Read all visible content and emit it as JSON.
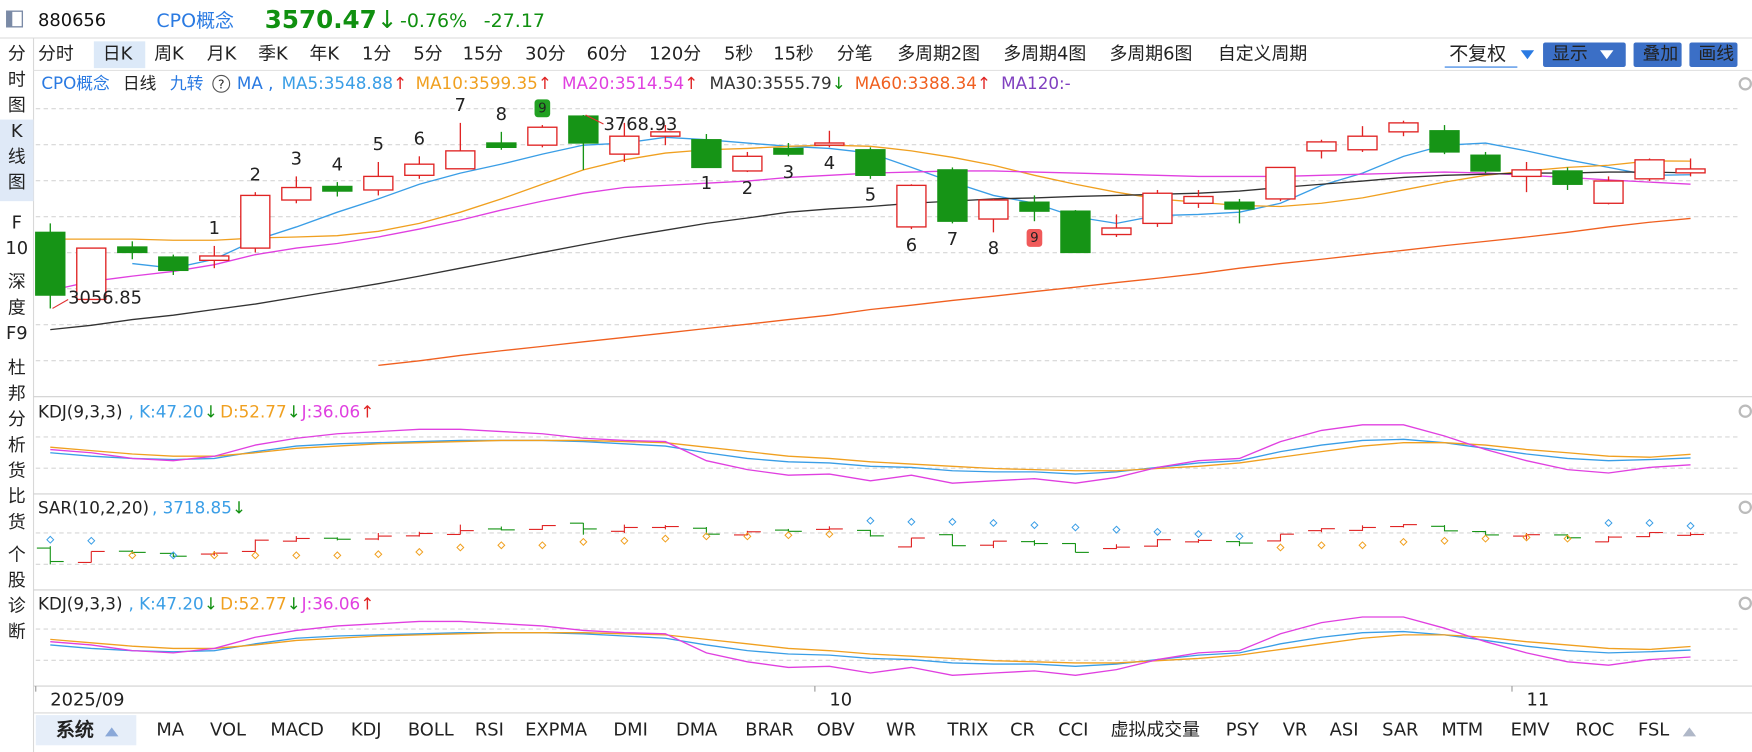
{
  "header": {
    "code": "880656",
    "name": "CPO概念",
    "price": "3570.47",
    "arrow": "↓",
    "change_pct": "-0.76%",
    "change": "-27.17"
  },
  "sidebar": [
    [
      "分",
      "时",
      "图"
    ],
    [
      "K",
      "线",
      "图"
    ],
    [
      "F",
      "10"
    ],
    [
      "深",
      "度",
      "F9"
    ],
    [
      "杜",
      "邦",
      "分",
      "析"
    ],
    [
      "货",
      "比",
      "货"
    ],
    [
      "个",
      "股",
      "诊",
      "断"
    ]
  ],
  "active_sidebar": 1,
  "periods": [
    "分时",
    "日K",
    "周K",
    "月K",
    "季K",
    "年K",
    "1分",
    "5分",
    "15分",
    "30分",
    "60分",
    "120分",
    "5秒",
    "15秒",
    "分笔",
    "多周期2图",
    "多周期4图",
    "多周期6图",
    "自定义周期"
  ],
  "active_period": 1,
  "toolbar": {
    "adjust": "不复权",
    "buttons": [
      "显示",
      "叠加",
      "画线"
    ]
  },
  "chart_data": [
    {
      "type": "candlestick",
      "title": "CPO概念",
      "subtitle": "日线",
      "indicator": "九转",
      "ma_label": "MA ,",
      "categories": [
        "2025/09",
        null,
        null,
        null,
        null,
        null,
        null,
        null,
        null,
        null,
        null,
        null,
        null,
        null,
        null,
        null,
        null,
        null,
        null,
        "10",
        null,
        null,
        null,
        null,
        null,
        null,
        null,
        null,
        null,
        null,
        null,
        null,
        null,
        null,
        null,
        null,
        "11",
        null,
        null,
        null,
        null
      ],
      "open": [
        3337,
        3090,
        3283,
        3246,
        3234,
        3279,
        3456,
        3506,
        3493,
        3547,
        3571,
        3666,
        3658,
        3765,
        3625,
        3691,
        3678,
        3563,
        3646,
        3658,
        3641,
        3357,
        3567,
        3386,
        3448,
        3415,
        3329,
        3370,
        3444,
        3448,
        3460,
        3637,
        3641,
        3707,
        3711,
        3621,
        3543,
        3563,
        3444,
        3534,
        3556
      ],
      "high": [
        3370,
        3279,
        3304,
        3255,
        3287,
        3485,
        3543,
        3522,
        3596,
        3617,
        3740,
        3707,
        3732,
        3768.93,
        3740,
        3732,
        3699,
        3633,
        3666,
        3711,
        3650,
        3514,
        3576,
        3460,
        3473,
        3419,
        3403,
        3493,
        3493,
        3460,
        3576,
        3678,
        3728,
        3748,
        3732,
        3633,
        3596,
        3576,
        3543,
        3609,
        3609
      ],
      "low": [
        3056.85,
        3090,
        3238,
        3180,
        3205,
        3263,
        3444,
        3469,
        3473,
        3534,
        3571,
        3641,
        3650,
        3567,
        3596,
        3658,
        3576,
        3559,
        3617,
        3650,
        3534,
        3349,
        3370,
        3337,
        3378,
        3263,
        3320,
        3357,
        3427,
        3370,
        3452,
        3609,
        3633,
        3691,
        3625,
        3555,
        3485,
        3493,
        3440,
        3526,
        3543
      ],
      "close": [
        3106,
        3279,
        3263,
        3197,
        3250,
        3473,
        3502,
        3489,
        3543,
        3588,
        3637,
        3650,
        3724,
        3666,
        3691,
        3707,
        3576,
        3617,
        3625,
        3666,
        3547,
        3510,
        3378,
        3456,
        3415,
        3263,
        3353,
        3481,
        3469,
        3423,
        3576,
        3670,
        3691,
        3740,
        3633,
        3563,
        3567,
        3514,
        3526,
        3604,
        3570.47
      ],
      "up_color": "#e02424",
      "down_color": "#169416",
      "ylim": [
        2732,
        3925
      ],
      "high_label": {
        "index": 13,
        "text": "3768.93"
      },
      "low_label": {
        "index": 0,
        "text": "3056.85"
      },
      "td_up": [
        {
          "index": 4,
          "text": "1"
        },
        {
          "index": 5,
          "text": "2"
        },
        {
          "index": 6,
          "text": "3"
        },
        {
          "index": 7,
          "text": "4"
        },
        {
          "index": 8,
          "text": "5"
        },
        {
          "index": 9,
          "text": "6"
        },
        {
          "index": 10,
          "text": "7"
        },
        {
          "index": 11,
          "text": "8"
        },
        {
          "index": 12,
          "text": "9"
        }
      ],
      "td_down": [
        {
          "index": 16,
          "text": "1"
        },
        {
          "index": 17,
          "text": "2"
        },
        {
          "index": 18,
          "text": "3"
        },
        {
          "index": 19,
          "text": "4"
        },
        {
          "index": 20,
          "text": "5"
        },
        {
          "index": 21,
          "text": "6"
        },
        {
          "index": 22,
          "text": "7"
        },
        {
          "index": 23,
          "text": "8"
        },
        {
          "index": 24,
          "text": "9"
        }
      ],
      "td_color": "#e020c8",
      "series": [
        {
          "name": "MA5:3548.88",
          "arrow": "↑",
          "color": "#3a9ee6",
          "values": [
            null,
            null,
            3222,
            3205,
            3238,
            3308,
            3357,
            3411,
            3460,
            3514,
            3555,
            3588,
            3625,
            3658,
            3666,
            3687,
            3678,
            3666,
            3654,
            3646,
            3629,
            3576,
            3522,
            3473,
            3444,
            3394,
            3370,
            3399,
            3403,
            3411,
            3444,
            3510,
            3555,
            3617,
            3658,
            3666,
            3637,
            3604,
            3576,
            3547,
            3548.88
          ]
        },
        {
          "name": "MA10:3599.35",
          "arrow": "↑",
          "color": "#f0a020",
          "values": [
            3312,
            3312,
            3312,
            3308,
            3308,
            3316,
            3320,
            3325,
            3341,
            3370,
            3411,
            3460,
            3514,
            3567,
            3604,
            3629,
            3641,
            3646,
            3654,
            3658,
            3654,
            3637,
            3613,
            3584,
            3547,
            3514,
            3485,
            3460,
            3448,
            3436,
            3432,
            3444,
            3464,
            3493,
            3522,
            3547,
            3563,
            3576,
            3584,
            3600,
            3599.35
          ]
        },
        {
          "name": "MA20:3514.54",
          "arrow": "↑",
          "color": "#e040e0",
          "values": [
            3123,
            3156,
            3176,
            3193,
            3218,
            3255,
            3279,
            3296,
            3320,
            3349,
            3382,
            3419,
            3452,
            3481,
            3502,
            3510,
            3518,
            3526,
            3539,
            3547,
            3555,
            3559,
            3563,
            3563,
            3559,
            3555,
            3551,
            3547,
            3543,
            3543,
            3543,
            3547,
            3551,
            3555,
            3559,
            3555,
            3547,
            3539,
            3530,
            3522,
            3514.54
          ]
        },
        {
          "name": "MA30:3555.79",
          "arrow": "↓",
          "color": "#333333",
          "values": [
            2979,
            2995,
            3016,
            3032,
            3053,
            3073,
            3098,
            3123,
            3148,
            3176,
            3205,
            3234,
            3263,
            3292,
            3320,
            3345,
            3370,
            3390,
            3411,
            3423,
            3432,
            3444,
            3452,
            3460,
            3464,
            3469,
            3473,
            3477,
            3481,
            3489,
            3502,
            3514,
            3526,
            3539,
            3547,
            3551,
            3555,
            3555,
            3559,
            3559,
            3555.79
          ]
        },
        {
          "name": "MA60:3388.34",
          "arrow": "↑",
          "color": "#f06020",
          "values": [
            null,
            null,
            null,
            null,
            null,
            null,
            null,
            null,
            2847,
            2864,
            2884,
            2901,
            2917,
            2934,
            2950,
            2966,
            2983,
            2999,
            3016,
            3032,
            3053,
            3069,
            3086,
            3102,
            3119,
            3135,
            3152,
            3168,
            3185,
            3205,
            3222,
            3238,
            3255,
            3271,
            3288,
            3304,
            3320,
            3337,
            3357,
            3374,
            3388.34
          ]
        },
        {
          "name": "MA120:-",
          "color": "#8040c0"
        }
      ]
    },
    {
      "type": "line",
      "title": "KDJ(9,3,3)",
      "ylim": [
        -10,
        139
      ],
      "series": [
        {
          "name": ", K:47.20",
          "arrow": "↓",
          "color": "#3a9ee6",
          "values": [
            55.2,
            49.8,
            46.3,
            44.5,
            46.3,
            57,
            65.9,
            69.4,
            71.2,
            73,
            74.8,
            74.8,
            74.8,
            73,
            69.4,
            65.9,
            55.2,
            46.3,
            40.9,
            39.2,
            33.8,
            32,
            26.7,
            24.9,
            24.9,
            21.4,
            24.9,
            32,
            39.2,
            42.7,
            57,
            67.6,
            74.8,
            76.5,
            71.2,
            62.3,
            53.4,
            46.3,
            42.7,
            44.5,
            47.2
          ]
        },
        {
          "name": "D:52.77",
          "arrow": "↓",
          "color": "#f0a020",
          "values": [
            64.1,
            58.7,
            53.4,
            49.8,
            49.8,
            55.2,
            62.3,
            65.9,
            69.4,
            71.2,
            73,
            74.8,
            74.8,
            74.8,
            73,
            71.2,
            64.1,
            57,
            49.8,
            46.3,
            40.9,
            37.4,
            33.8,
            30.3,
            28.5,
            26.7,
            26.7,
            30.3,
            33.8,
            39.2,
            48.1,
            57,
            65.9,
            71.2,
            71.2,
            67.6,
            60.5,
            55.2,
            49.8,
            48.1,
            52.77
          ]
        },
        {
          "name": "J:36.06",
          "arrow": "↑",
          "color": "#e040e0",
          "values": [
            60.5,
            55.2,
            46.3,
            42.7,
            49.8,
            67.6,
            78.3,
            85.4,
            89,
            92.6,
            92.6,
            89,
            85.4,
            78.3,
            74.8,
            73,
            42.7,
            28.5,
            19.6,
            21.4,
            10.7,
            19.6,
            7.1,
            10.7,
            14.2,
            7.1,
            16,
            32,
            42.7,
            46.3,
            73,
            90.8,
            99.7,
            99.7,
            81.9,
            60.5,
            42.7,
            28.5,
            23.1,
            32,
            36.06
          ]
        }
      ]
    },
    {
      "type": "sar",
      "title": "SAR(10,2,20)",
      "label": ", 3718.85",
      "arrow": "↓",
      "color": "#3a9ee6",
      "below_color": "#f0a020",
      "ylim": [
        2617,
        4230
      ],
      "values": [
        3481,
        3462,
        3212,
        3212,
        3212,
        3212,
        3212,
        3212,
        3231,
        3270,
        3347,
        3385,
        3385,
        3443,
        3462,
        3500,
        3539,
        3539,
        3558,
        3577,
        3807,
        3788,
        3788,
        3769,
        3731,
        3692,
        3654,
        3615,
        3577,
        3539,
        3347,
        3385,
        3385,
        3443,
        3462,
        3500,
        3519,
        3500,
        3769,
        3769,
        3718.85
      ]
    },
    {
      "type": "line",
      "title": "KDJ(9,3,3)",
      "ylim": [
        -10,
        139
      ],
      "series": [
        {
          "name": ", K:47.20",
          "arrow": "↓",
          "color": "#3a9ee6",
          "values": [
            55.2,
            49.8,
            46.3,
            44.5,
            46.3,
            57,
            65.9,
            69.4,
            71.2,
            73,
            74.8,
            74.8,
            74.8,
            73,
            69.4,
            65.9,
            55.2,
            46.3,
            40.9,
            39.2,
            33.8,
            32,
            26.7,
            24.9,
            24.9,
            21.4,
            24.9,
            32,
            39.2,
            42.7,
            57,
            67.6,
            74.8,
            76.5,
            71.2,
            62.3,
            53.4,
            46.3,
            42.7,
            44.5,
            47.2
          ]
        },
        {
          "name": "D:52.77",
          "arrow": "↓",
          "color": "#f0a020",
          "values": [
            64.1,
            58.7,
            53.4,
            49.8,
            49.8,
            55.2,
            62.3,
            65.9,
            69.4,
            71.2,
            73,
            74.8,
            74.8,
            74.8,
            73,
            71.2,
            64.1,
            57,
            49.8,
            46.3,
            40.9,
            37.4,
            33.8,
            30.3,
            28.5,
            26.7,
            26.7,
            30.3,
            33.8,
            39.2,
            48.1,
            57,
            65.9,
            71.2,
            71.2,
            67.6,
            60.5,
            55.2,
            49.8,
            48.1,
            52.77
          ]
        },
        {
          "name": "J:36.06",
          "arrow": "↑",
          "color": "#e040e0",
          "values": [
            60.5,
            55.2,
            46.3,
            42.7,
            49.8,
            67.6,
            78.3,
            85.4,
            89,
            92.6,
            92.6,
            89,
            85.4,
            78.3,
            74.8,
            73,
            42.7,
            28.5,
            19.6,
            21.4,
            10.7,
            19.6,
            7.1,
            10.7,
            14.2,
            7.1,
            16,
            32,
            42.7,
            46.3,
            73,
            90.8,
            99.7,
            99.7,
            81.9,
            60.5,
            42.7,
            28.5,
            23.1,
            32,
            36.06
          ]
        }
      ]
    }
  ],
  "bottom_tabs": {
    "system": "系统",
    "items": [
      "MA",
      "VOL",
      "MACD",
      "KDJ",
      "BOLL",
      "RSI",
      "EXPMA",
      "DMI",
      "DMA",
      "BRAR",
      "OBV",
      "WR",
      "TRIX",
      "CR",
      "CCI",
      "虚拟成交量",
      "PSY",
      "VR",
      "ASI",
      "SAR",
      "MTM",
      "EMV",
      "ROC",
      "FSL"
    ],
    "active": 0
  }
}
